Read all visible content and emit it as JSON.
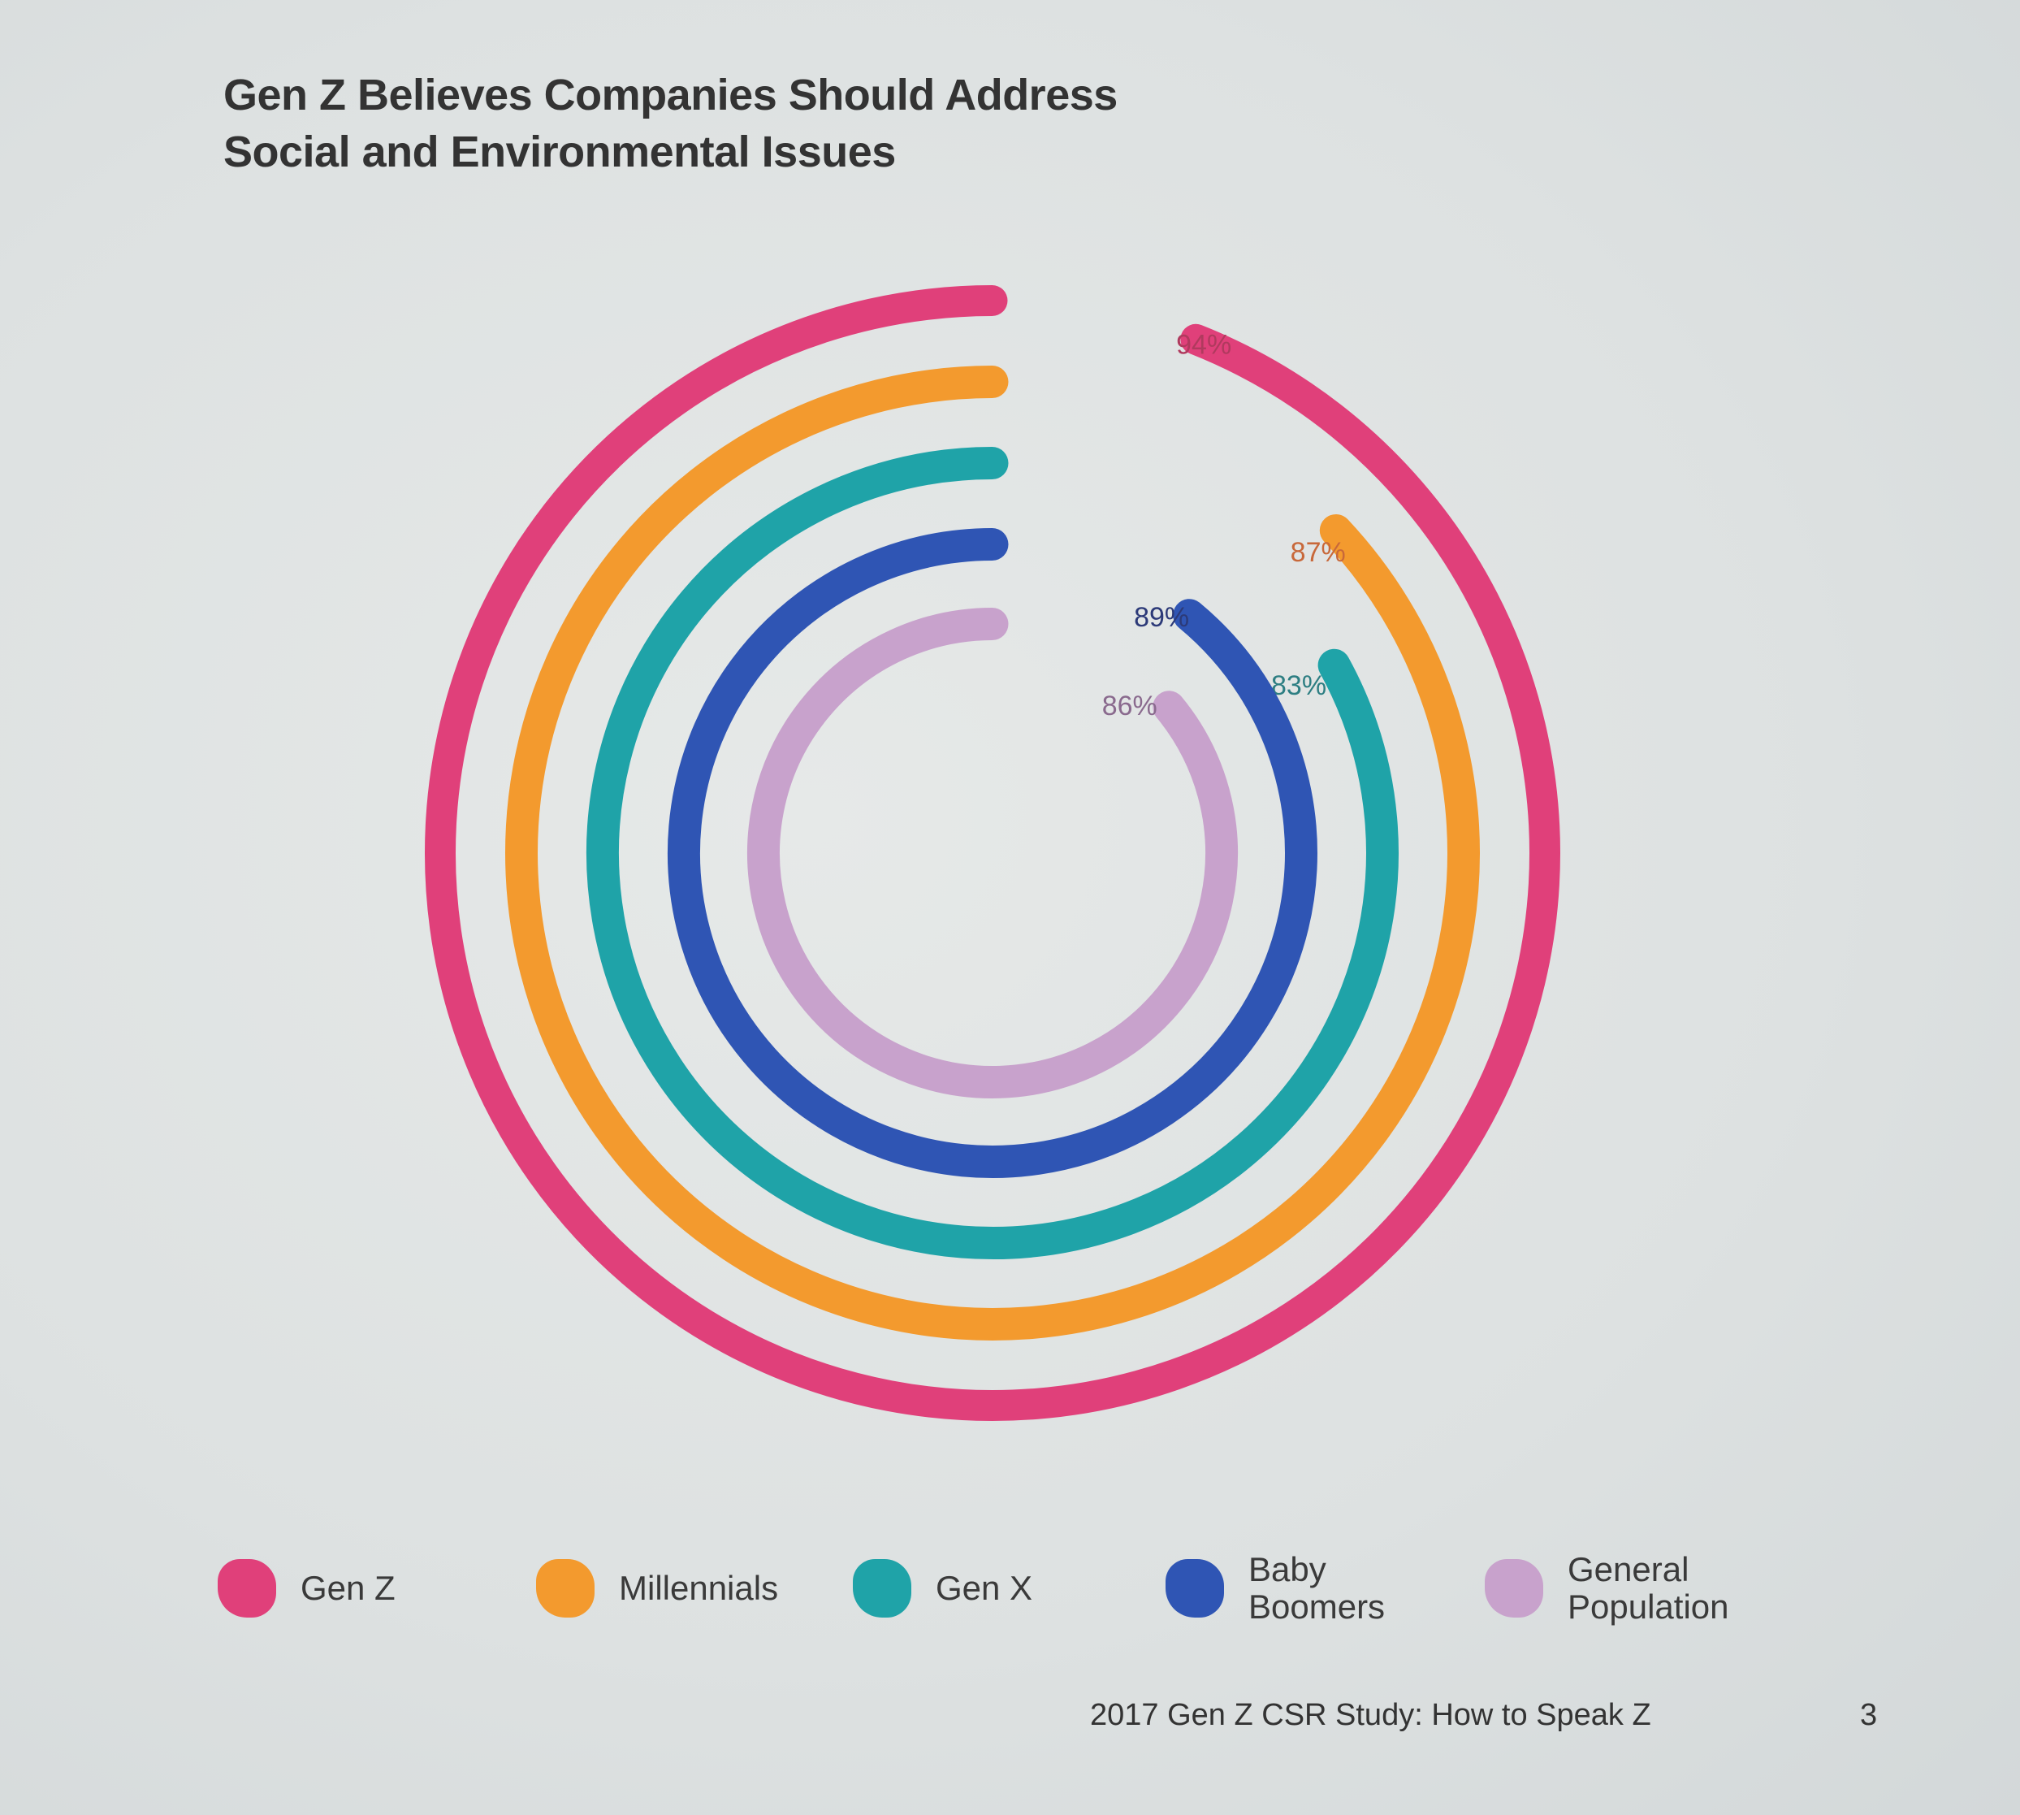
{
  "title_lines": [
    "Gen Z Believes Companies Should Address",
    "Social and Environmental Issues"
  ],
  "chart_data": {
    "type": "radial-bar",
    "title": "Gen Z Believes Companies Should Address Social and Environmental Issues",
    "unit": "%",
    "max": 100,
    "series": [
      {
        "name": "Gen Z",
        "value": 94,
        "label": "94%",
        "color": "#e0407a",
        "label_color": "#b03a5e"
      },
      {
        "name": "Millennials",
        "value": 87,
        "label": "87%",
        "color": "#f39a2e",
        "label_color": "#c8683a"
      },
      {
        "name": "Gen X",
        "value": 83,
        "label": "83%",
        "color": "#1fa3a8",
        "label_color": "#2d7e82"
      },
      {
        "name": "Baby Boomers",
        "value": 89,
        "label": "89%",
        "color": "#2f55b4",
        "label_color": "#2c3a78"
      },
      {
        "name": "General Population",
        "value": 86,
        "label": "86%",
        "color": "#c8a2cc",
        "label_color": "#8a6a8e"
      }
    ],
    "legend_position": "bottom"
  },
  "legend": [
    {
      "line1": "Gen Z",
      "line2": ""
    },
    {
      "line1": "Millennials",
      "line2": ""
    },
    {
      "line1": "Gen X",
      "line2": ""
    },
    {
      "line1": "Baby",
      "line2": "Boomers"
    },
    {
      "line1": "General",
      "line2": "Population"
    }
  ],
  "footer": {
    "text": "2017 Gen Z CSR Study: How to Speak Z",
    "page": "3"
  }
}
